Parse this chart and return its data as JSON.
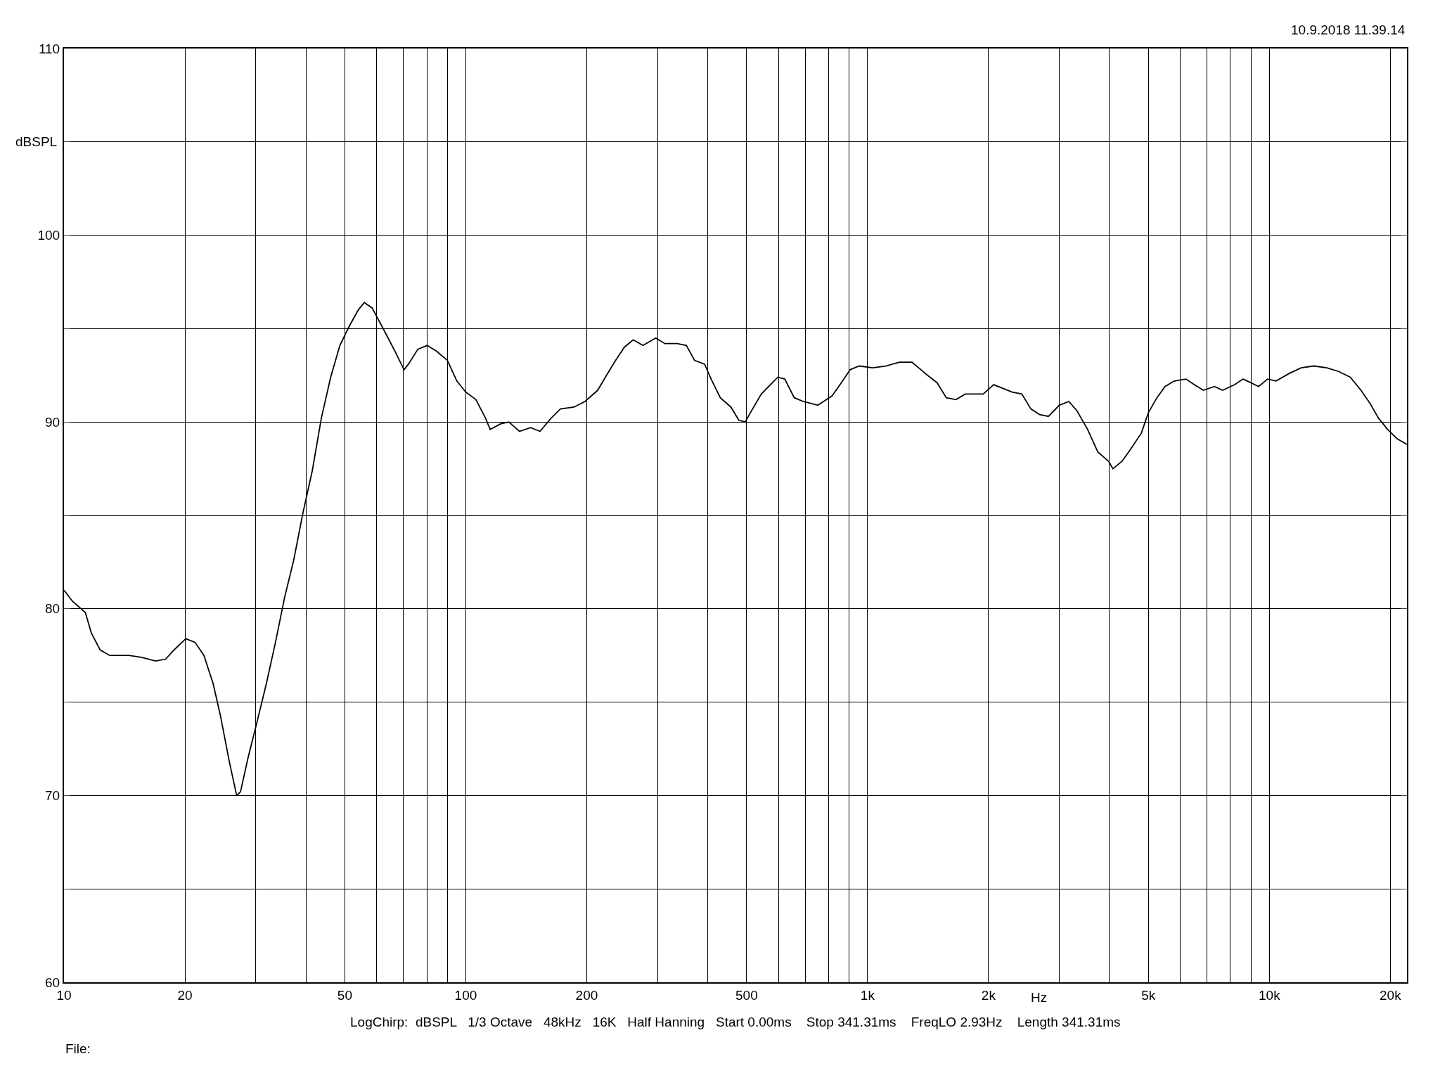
{
  "chart_data": {
    "type": "line",
    "xlabel": "Hz",
    "ylabel": "dBSPL",
    "log": "x",
    "grid": true,
    "marker": "none",
    "line_style": "solid",
    "xlim": [
      10,
      22000
    ],
    "ylim": [
      60,
      110
    ],
    "xticks": [
      10,
      20,
      {
        "value": 30,
        "label": null
      },
      {
        "value": 40,
        "label": null
      },
      50,
      {
        "value": 60,
        "label": null
      },
      {
        "value": 70,
        "label": null
      },
      {
        "value": 80,
        "label": null
      },
      {
        "value": 90,
        "label": null
      },
      100,
      200,
      {
        "value": 300,
        "label": null
      },
      {
        "value": 400,
        "label": null
      },
      500,
      {
        "value": 600,
        "label": null
      },
      {
        "value": 700,
        "label": null
      },
      {
        "value": 800,
        "label": null
      },
      {
        "value": 900,
        "label": null
      },
      {
        "value": 1000,
        "label": "1k"
      },
      {
        "value": 2000,
        "label": "2k"
      },
      {
        "value": 3000,
        "label": null
      },
      {
        "value": 4000,
        "label": null
      },
      {
        "value": 5000,
        "label": "5k"
      },
      {
        "value": 6000,
        "label": null
      },
      {
        "value": 7000,
        "label": null
      },
      {
        "value": 8000,
        "label": null
      },
      {
        "value": 9000,
        "label": null
      },
      {
        "value": 10000,
        "label": "10k"
      },
      {
        "value": 20000,
        "label": "20k"
      }
    ],
    "yticks": [
      60,
      {
        "value": 65,
        "label": null
      },
      70,
      {
        "value": 75,
        "label": null
      },
      80,
      {
        "value": 85,
        "label": null
      },
      90,
      {
        "value": 95,
        "label": null
      },
      100,
      {
        "value": 105,
        "label": null
      },
      110
    ],
    "annotations": [
      "10.9.2018 11.39.14",
      "LogChirp:  dBSPL   1/3 Octave   48kHz   16K   Half Hanning   Start 0.00ms    Stop 341.31ms    FreqLO 2.93Hz    Length 341.31ms",
      "File:"
    ],
    "series": [
      {
        "color": "#000000",
        "x": [
          10,
          10.5,
          11.3,
          11.7,
          12.3,
          13,
          14.5,
          15.6,
          16.9,
          17.9,
          18.8,
          20.1,
          21.2,
          22.3,
          23.5,
          24.5,
          25.8,
          26.9,
          27.5,
          28.7,
          30.2,
          31.9,
          33.6,
          35.4,
          37.3,
          39.3,
          41.5,
          43.7,
          46.1,
          48.6,
          51.2,
          54,
          55.9,
          58.5,
          63,
          66.6,
          70.2,
          72,
          76,
          80.1,
          84.5,
          90,
          95,
          100,
          106,
          112,
          115,
          122,
          128,
          136,
          145,
          153,
          163,
          172,
          186,
          198,
          213,
          224,
          236,
          248,
          261,
          276,
          297,
          313,
          336,
          354,
          371,
          393,
          408,
          430,
          457,
          478,
          496,
          511,
          544,
          573,
          598,
          622,
          657,
          692,
          752,
          816,
          860,
          905,
          953,
          1030,
          1110,
          1200,
          1290,
          1340,
          1410,
          1490,
          1570,
          1660,
          1750,
          1850,
          1940,
          2060,
          2290,
          2420,
          2550,
          2680,
          2820,
          3000,
          3170,
          3320,
          3530,
          3740,
          3980,
          4080,
          4300,
          4500,
          4800,
          5000,
          5250,
          5500,
          5800,
          6200,
          6500,
          6850,
          7300,
          7650,
          8200,
          8600,
          9000,
          9400,
          9900,
          10400,
          11200,
          12000,
          12900,
          13900,
          14900,
          15900,
          16900,
          17800,
          18700,
          19700,
          20800,
          22000
        ],
        "values": [
          81.0,
          80.4,
          79.8,
          78.7,
          77.8,
          77.5,
          77.5,
          77.4,
          77.2,
          77.3,
          77.8,
          78.4,
          78.2,
          77.5,
          76.0,
          74.3,
          71.8,
          70.0,
          70.2,
          72.0,
          73.9,
          76.0,
          78.2,
          80.6,
          82.6,
          85.1,
          87.4,
          90.2,
          92.4,
          94.1,
          95.1,
          96.0,
          96.4,
          96.1,
          94.8,
          93.8,
          92.8,
          93.1,
          93.9,
          94.1,
          93.8,
          93.3,
          92.2,
          91.6,
          91.2,
          90.2,
          89.6,
          89.9,
          90.0,
          89.5,
          89.7,
          89.5,
          90.2,
          90.7,
          90.8,
          91.1,
          91.7,
          92.5,
          93.3,
          94.0,
          94.4,
          94.1,
          94.5,
          94.2,
          94.2,
          94.1,
          93.3,
          93.1,
          92.3,
          91.3,
          90.8,
          90.1,
          90.0,
          90.5,
          91.5,
          92.0,
          92.4,
          92.3,
          91.3,
          91.1,
          90.9,
          91.4,
          92.1,
          92.8,
          93.0,
          92.9,
          93.0,
          93.2,
          93.2,
          92.9,
          92.5,
          92.1,
          91.3,
          91.2,
          91.5,
          91.5,
          91.5,
          92.0,
          91.6,
          91.5,
          90.7,
          90.4,
          90.3,
          90.9,
          91.1,
          90.6,
          89.6,
          88.4,
          87.9,
          87.5,
          87.9,
          88.5,
          89.4,
          90.5,
          91.3,
          91.9,
          92.2,
          92.3,
          92.0,
          91.7,
          91.9,
          91.7,
          92.0,
          92.3,
          92.1,
          91.9,
          92.3,
          92.2,
          92.6,
          92.9,
          93.0,
          92.9,
          92.7,
          92.4,
          91.7,
          91.0,
          90.2,
          89.6,
          89.1,
          88.8
        ]
      }
    ]
  }
}
